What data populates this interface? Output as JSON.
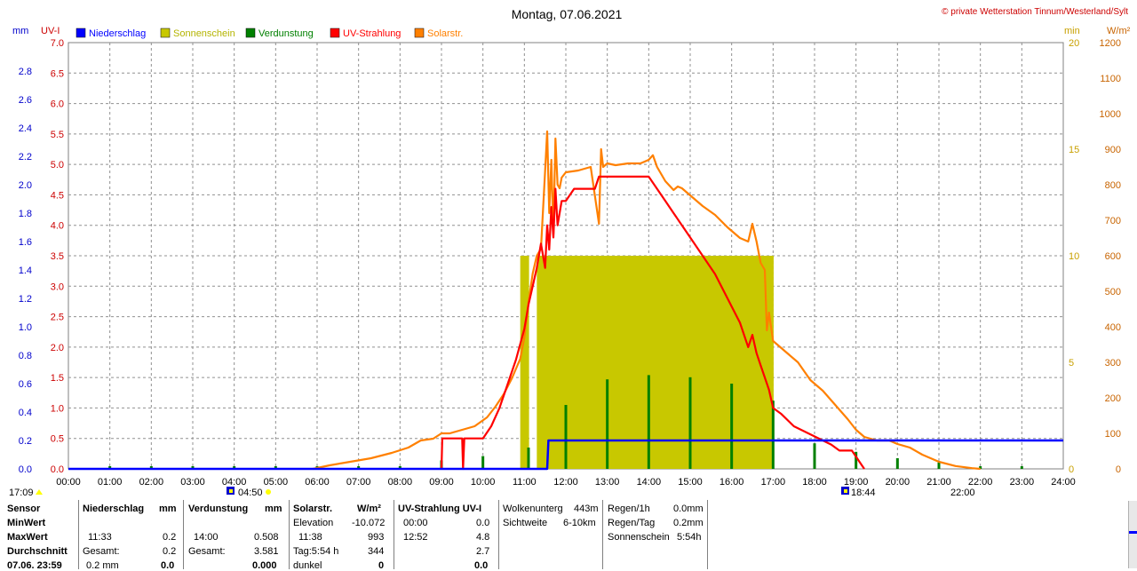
{
  "chart_data": {
    "type": "line",
    "title": "Montag, 07.06.2021",
    "copyright": "© private Wetterstation Tinnum/Westerland/Sylt",
    "axes": {
      "mm": {
        "label": "mm",
        "ticks": [
          "0.0",
          "0.2",
          "0.4",
          "0.6",
          "0.8",
          "1.0",
          "1.2",
          "1.4",
          "1.6",
          "1.8",
          "2.0",
          "2.2",
          "2.4",
          "2.6",
          "2.8"
        ],
        "range": [
          0,
          3.0
        ]
      },
      "uv": {
        "label": "UV-I",
        "ticks": [
          "0.0",
          "0.5",
          "1.0",
          "1.5",
          "2.0",
          "2.5",
          "3.0",
          "3.5",
          "4.0",
          "4.5",
          "5.0",
          "5.5",
          "6.0",
          "6.5",
          "7.0"
        ],
        "range": [
          0,
          7.0
        ]
      },
      "min": {
        "label": "min",
        "ticks": [
          "0",
          "5",
          "10",
          "15",
          "20"
        ],
        "range": [
          0,
          20
        ]
      },
      "wm2": {
        "label": "W/m²",
        "ticks": [
          "0",
          "100",
          "200",
          "300",
          "400",
          "500",
          "600",
          "700",
          "800",
          "900",
          "1000",
          "1100",
          "1200"
        ],
        "range": [
          0,
          1200
        ]
      },
      "x": {
        "ticks": [
          "00:00",
          "01:00",
          "02:00",
          "03:00",
          "04:00",
          "05:00",
          "06:00",
          "07:00",
          "08:00",
          "09:00",
          "10:00",
          "11:00",
          "12:00",
          "13:00",
          "14:00",
          "15:00",
          "16:00",
          "17:00",
          "18:00",
          "19:00",
          "20:00",
          "21:00",
          "22:00",
          "23:00",
          "24:00"
        ],
        "range": [
          0,
          24
        ]
      }
    },
    "legend": [
      {
        "name": "Niederschlag",
        "color": "#0000ff"
      },
      {
        "name": "Sonnenschein",
        "color": "#c8c800"
      },
      {
        "name": "Verdunstung",
        "color": "#008000"
      },
      {
        "name": "UV-Strahlung",
        "color": "#ff0000"
      },
      {
        "name": "Solarstr.",
        "color": "#ff8000"
      }
    ],
    "sun_markers": {
      "left_time": "17:09",
      "sunrise": "04:50",
      "sunset": "18:44",
      "night": "22:00"
    },
    "series": [
      {
        "name": "Solarstr.",
        "axis": "wm2",
        "color": "#ff8000",
        "x": [
          5.9,
          6.3,
          6.8,
          7.3,
          7.8,
          8.2,
          8.5,
          8.8,
          9.0,
          9.2,
          9.5,
          9.8,
          10.1,
          10.3,
          10.5,
          10.7,
          10.9,
          11.0,
          11.1,
          11.2,
          11.3,
          11.4,
          11.5,
          11.55,
          11.6,
          11.65,
          11.7,
          11.75,
          11.8,
          11.85,
          11.9,
          12.0,
          12.3,
          12.6,
          12.8,
          12.85,
          12.9,
          13.0,
          13.2,
          13.5,
          13.8,
          14.0,
          14.1,
          14.2,
          14.4,
          14.6,
          14.7,
          14.8,
          15.0,
          15.3,
          15.6,
          15.9,
          16.2,
          16.4,
          16.5,
          16.6,
          16.7,
          16.8,
          16.85,
          16.9,
          17.0,
          17.1,
          17.3,
          17.6,
          17.9,
          18.2,
          18.5,
          18.8,
          19.0,
          19.2,
          19.5,
          19.8,
          20.0,
          20.3,
          20.6,
          21.0,
          21.4,
          21.8,
          22.0
        ],
        "y": [
          0,
          10,
          20,
          30,
          45,
          60,
          80,
          85,
          100,
          100,
          110,
          120,
          145,
          175,
          210,
          255,
          310,
          370,
          470,
          550,
          600,
          620,
          840,
          950,
          720,
          870,
          660,
          930,
          800,
          790,
          820,
          835,
          840,
          850,
          690,
          900,
          850,
          860,
          855,
          860,
          860,
          870,
          883,
          850,
          810,
          785,
          795,
          790,
          770,
          740,
          715,
          680,
          650,
          640,
          690,
          640,
          580,
          560,
          390,
          440,
          360,
          350,
          330,
          300,
          250,
          220,
          180,
          140,
          110,
          90,
          80,
          80,
          70,
          60,
          40,
          20,
          8,
          2,
          0
        ]
      },
      {
        "name": "UV-Strahlung",
        "axis": "uv",
        "color": "#ff0000",
        "x": [
          9.0,
          9.02,
          9.5,
          9.52,
          9.55,
          9.6,
          9.62,
          10.0,
          10.2,
          10.4,
          10.6,
          10.8,
          11.0,
          11.1,
          11.2,
          11.3,
          11.4,
          11.5,
          11.55,
          11.6,
          11.65,
          11.7,
          11.75,
          11.8,
          11.9,
          12.0,
          12.2,
          12.4,
          12.7,
          12.8,
          12.85,
          13.0,
          13.5,
          14.0,
          14.1,
          14.2,
          14.4,
          14.6,
          14.8,
          15.0,
          15.3,
          15.6,
          15.9,
          16.2,
          16.4,
          16.5,
          16.6,
          16.7,
          16.8,
          16.9,
          17.0,
          17.2,
          17.5,
          17.8,
          18.1,
          18.4,
          18.6,
          18.9,
          19.0,
          19.1,
          19.2
        ],
        "y": [
          0,
          0.5,
          0.5,
          0,
          0.5,
          0.5,
          0.5,
          0.5,
          0.7,
          1.0,
          1.4,
          1.8,
          2.3,
          2.7,
          3.0,
          3.3,
          3.7,
          3.3,
          4.0,
          3.6,
          4.3,
          3.8,
          4.6,
          4.0,
          4.4,
          4.4,
          4.6,
          4.6,
          4.6,
          4.8,
          4.8,
          4.8,
          4.8,
          4.8,
          4.7,
          4.6,
          4.4,
          4.2,
          4.0,
          3.8,
          3.5,
          3.2,
          2.8,
          2.4,
          2.0,
          2.2,
          1.9,
          1.7,
          1.5,
          1.3,
          1.0,
          0.9,
          0.7,
          0.6,
          0.5,
          0.4,
          0.3,
          0.3,
          0.2,
          0.1,
          0
        ]
      },
      {
        "name": "Niederschlag",
        "axis": "mm",
        "color": "#0000ff",
        "x": [
          0,
          11.55,
          11.58,
          24
        ],
        "y": [
          0,
          0,
          0.2,
          0.2
        ]
      }
    ],
    "sunshine_bars": {
      "axis": "min",
      "color": "#c8c800",
      "x": [
        10.9,
        11.0,
        11.1,
        11.2,
        11.3,
        11.4,
        11.5,
        11.6,
        11.7,
        11.8,
        11.9,
        12.0,
        12.1,
        12.2,
        12.3,
        12.4,
        12.5,
        12.6,
        12.7,
        12.8,
        12.9,
        13.0,
        13.1,
        13.2,
        13.3,
        13.4,
        13.5,
        13.6,
        13.7,
        13.8,
        13.9,
        14.0,
        14.1,
        14.2,
        14.3,
        14.4,
        14.5,
        14.6,
        14.7,
        14.8,
        14.9,
        15.0,
        15.1,
        15.2,
        15.3,
        15.4,
        15.5,
        15.6,
        15.7,
        15.8,
        15.9,
        16.0,
        16.1,
        16.2,
        16.3,
        16.4,
        16.5,
        16.6,
        16.7,
        16.8,
        16.9
      ],
      "y": [
        10,
        10,
        0,
        0,
        10,
        10,
        10,
        10,
        10,
        10,
        10,
        10,
        10,
        10,
        10,
        10,
        10,
        10,
        10,
        10,
        10,
        10,
        10,
        10,
        10,
        10,
        10,
        10,
        10,
        10,
        10,
        10,
        10,
        10,
        10,
        10,
        10,
        10,
        10,
        10,
        10,
        10,
        10,
        10,
        10,
        10,
        10,
        10,
        10,
        10,
        10,
        10,
        10,
        10,
        10,
        10,
        10,
        10,
        10,
        10,
        10
      ]
    },
    "evaporation_spikes": {
      "axis": "min",
      "color": "#008000",
      "x": [
        1.0,
        2.0,
        3.0,
        4.0,
        5.0,
        6.0,
        7.0,
        8.0,
        9.0,
        10.0,
        11.1,
        12.0,
        13.0,
        14.0,
        15.0,
        16.0,
        17.0,
        18.0,
        19.0,
        20.0,
        21.0,
        22.0,
        23.0
      ],
      "y": [
        0,
        0,
        0,
        0,
        0,
        0,
        0,
        0,
        0.4,
        0.6,
        1.0,
        3.0,
        4.2,
        4.4,
        4.3,
        4.0,
        3.2,
        1.2,
        0.8,
        0.5,
        0.3,
        0,
        0
      ]
    }
  },
  "stats": {
    "sensor": {
      "h": "Sensor",
      "min": "MinWert",
      "max": "MaxWert",
      "avg": "Durchschnitt",
      "date": "07.06. 23:59"
    },
    "niederschlag": {
      "h": "Niederschlag",
      "unit": "mm",
      "max_t": "11:33",
      "max_v": "0.2",
      "sum_l": "Gesamt:",
      "sum_v": "0.2",
      "last_l": "0.2 mm",
      "last_v": "0.0"
    },
    "verdunstung": {
      "h": "Verdunstung",
      "unit": "mm",
      "max_t": "14:00",
      "max_v": "0.508",
      "sum_l": "Gesamt:",
      "sum_v": "3.581",
      "last_v": "0.000"
    },
    "solar": {
      "h": "Solarstr.",
      "unit": "W/m²",
      "elev_l": "Elevation",
      "elev_v": "-10.072",
      "max_t": "11:38",
      "max_v": "993",
      "tag_l": "Tag:5:54 h",
      "tag_v": "344",
      "dunkel_l": "dunkel",
      "dunkel_v": "0"
    },
    "uv": {
      "h": "UV-Strahlung UV-I",
      "min_t": "00:00",
      "min_v": "0.0",
      "max_t": "12:52",
      "max_v": "4.8",
      "avg_v": "2.7",
      "last_v": "0.0"
    },
    "wolken": {
      "l1": "Wolkenunterg",
      "v1": "443m",
      "l2": "Sichtweite",
      "v2": "6-10km"
    },
    "regen": {
      "l1": "Regen/1h",
      "v1": "0.0mm",
      "l2": "Regen/Tag",
      "v2": "0.2mm",
      "l3": "Sonnenschein",
      "v3": "5:54h"
    }
  }
}
